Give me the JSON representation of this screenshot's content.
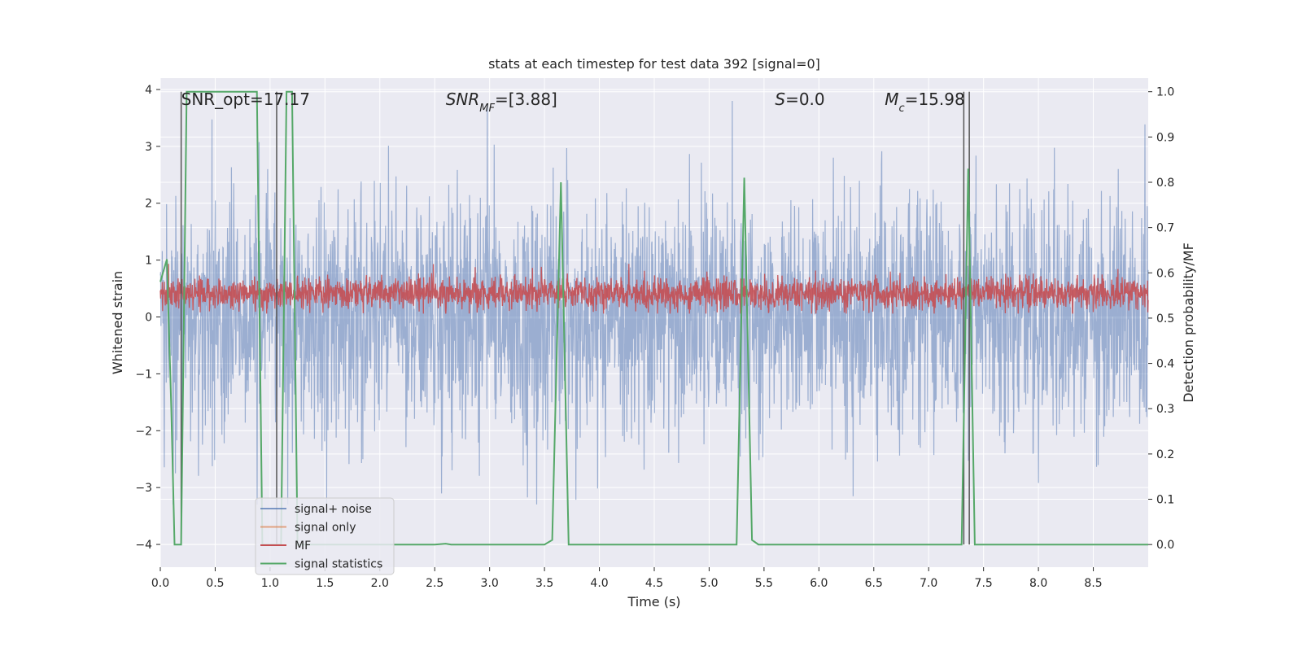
{
  "chart_data": {
    "type": "line",
    "title": "stats at each timestep for test data 392 [signal=0]",
    "xlabel": "Time (s)",
    "ylabel_left": "Whitened strain",
    "ylabel_right": "Detection probability/MF",
    "xlim": [
      0,
      9.0
    ],
    "ylim_left": [
      -4.4,
      4.2
    ],
    "ylim_right": [
      -0.05,
      1.03
    ],
    "x_ticks": [
      0.0,
      0.5,
      1.0,
      1.5,
      2.0,
      2.5,
      3.0,
      3.5,
      4.0,
      4.5,
      5.0,
      5.5,
      6.0,
      6.5,
      7.0,
      7.5,
      8.0,
      8.5
    ],
    "x_tick_labels": [
      "0.0",
      "0.5",
      "1.0",
      "1.5",
      "2.0",
      "2.5",
      "3.0",
      "3.5",
      "4.0",
      "4.5",
      "5.0",
      "5.5",
      "6.0",
      "6.5",
      "7.0",
      "7.5",
      "8.0",
      "8.5"
    ],
    "y_left_ticks": [
      -4,
      -3,
      -2,
      -1,
      0,
      1,
      2,
      3,
      4
    ],
    "y_left_tick_labels": [
      "−4",
      "−3",
      "−2",
      "−1",
      "0",
      "1",
      "2",
      "3",
      "4"
    ],
    "y_right_ticks": [
      0.0,
      0.1,
      0.2,
      0.3,
      0.4,
      0.5,
      0.6,
      0.7,
      0.8,
      0.9,
      1.0
    ],
    "y_right_tick_labels": [
      "0.0",
      "0.1",
      "0.2",
      "0.3",
      "0.4",
      "0.5",
      "0.6",
      "0.7",
      "0.8",
      "0.9",
      "1.0"
    ],
    "grid": true,
    "legend_position": "lower-left",
    "annotations": [
      {
        "text": "SNR_opt=17.17",
        "x": 0.19,
        "y": 3.83
      },
      {
        "text": "SNR_MF=[3.88]",
        "x": 2.6,
        "y": 3.83
      },
      {
        "text": "S=0.0",
        "x": 5.6,
        "y": 3.83
      },
      {
        "text": "M_c=15.98",
        "x": 6.6,
        "y": 3.83
      }
    ],
    "series": [
      {
        "name": "signal+ noise",
        "axis": "left",
        "color": "#4c72b0",
        "alpha": 0.5,
        "description": "whitened noise fluctuating between about -3.3 and +3.8"
      },
      {
        "name": "signal only",
        "axis": "left",
        "color": "#dd8452",
        "alpha": 0.5,
        "values": []
      },
      {
        "name": "MF",
        "axis": "right",
        "color": "#c44e52",
        "alpha": 0.9,
        "description": "matched filter output oscillating around 0.55 (range ~0.52-0.62)"
      },
      {
        "name": "signal statistics",
        "axis": "right",
        "color": "#55a868",
        "x": [
          0.0,
          0.06,
          0.1,
          0.13,
          0.19,
          0.24,
          0.29,
          0.35,
          0.4,
          0.45,
          0.5,
          0.55,
          0.6,
          0.65,
          0.7,
          0.75,
          0.82,
          0.88,
          0.93,
          1.0,
          1.05,
          1.1,
          1.15,
          1.2,
          1.25,
          1.3,
          1.5,
          2.0,
          2.5,
          2.6,
          2.65,
          3.0,
          3.5,
          3.57,
          3.65,
          3.72,
          4.0,
          4.5,
          5.0,
          5.25,
          5.32,
          5.39,
          5.45,
          5.5,
          6.0,
          6.5,
          7.0,
          7.3,
          7.36,
          7.42,
          7.5,
          8.0,
          8.5,
          9.0
        ],
        "y": [
          0.58,
          0.63,
          0.3,
          0.0,
          0.0,
          1.0,
          1.0,
          1.0,
          1.0,
          1.0,
          1.0,
          1.0,
          1.0,
          1.0,
          1.0,
          1.0,
          1.0,
          1.0,
          0.0,
          0.0,
          0.0,
          0.0,
          1.0,
          1.0,
          0.0,
          0.0,
          0.0,
          0.0,
          0.0,
          0.002,
          0.0,
          0.0,
          0.0,
          0.01,
          0.8,
          0.0,
          0.0,
          0.0,
          0.0,
          0.0,
          0.81,
          0.01,
          0.0,
          0.0,
          0.0,
          0.0,
          0.0,
          0.0,
          0.83,
          0.0,
          0.0,
          0.0,
          0.0,
          0.0
        ]
      }
    ],
    "vertical_lines": [
      {
        "x": 0.19,
        "color": "#555555"
      },
      {
        "x": 1.06,
        "color": "#555555"
      },
      {
        "x": 7.32,
        "color": "#555555"
      },
      {
        "x": 7.37,
        "color": "#555555"
      }
    ]
  }
}
